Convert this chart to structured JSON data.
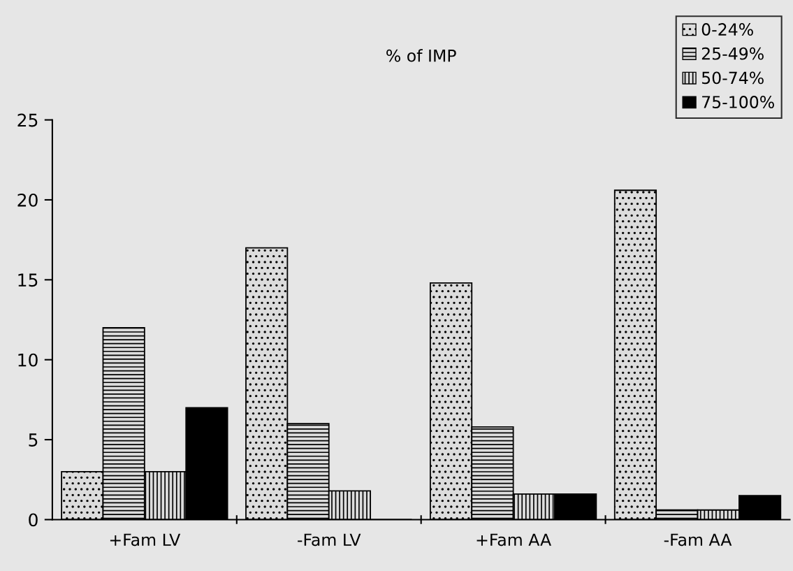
{
  "chart_data": {
    "type": "bar",
    "title": "% of IMP",
    "categories": [
      "+Fam LV",
      "-Fam LV",
      "+Fam AA",
      "-Fam AA"
    ],
    "series": [
      {
        "name": "0-24%",
        "color": "#000000",
        "values": [
          3,
          17,
          14.8,
          20.6
        ]
      },
      {
        "name": "25-49%",
        "color": "#000000",
        "values": [
          12,
          6,
          5.8,
          0.6
        ]
      },
      {
        "name": "50-74%",
        "color": "#000000",
        "values": [
          3,
          1.8,
          1.6,
          0.6
        ]
      },
      {
        "name": "75-100%",
        "color": "#000000",
        "values": [
          7,
          0,
          1.6,
          1.5
        ]
      }
    ],
    "ylim": [
      0,
      25
    ],
    "yticks": [
      0,
      5,
      10,
      15,
      20,
      25
    ],
    "grid": false,
    "legend": "top right"
  }
}
